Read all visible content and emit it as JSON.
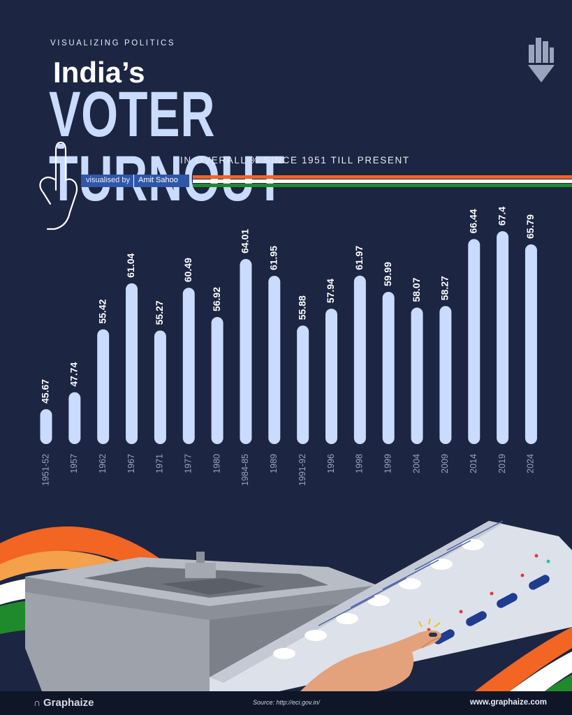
{
  "header": {
    "kicker": "VISUALIZING POLITICS",
    "title_line1": "India’s",
    "title_line2": "VOTER TURNOUT",
    "subtitle": "IN OVERALL % SINCE 1951 TILL PRESENT",
    "byline_label": "visualised by",
    "byline_name": "Amit Sahoo",
    "logo_icon": "graphaize-pencil-icon",
    "finger_icon": "voting-finger-icon"
  },
  "colors": {
    "background": "#1c2541",
    "bar": "#c9dbff",
    "saffron": "#f26522",
    "white": "#ffffff",
    "green": "#1f8a2c",
    "footer": "#0f1627"
  },
  "chart_data": {
    "type": "bar",
    "title": "India’s VOTER TURNOUT",
    "subtitle": "IN OVERALL % SINCE 1951 TILL PRESENT",
    "xlabel": "",
    "ylabel": "",
    "categories": [
      "1951-52",
      "1957",
      "1962",
      "1967",
      "1971",
      "1977",
      "1980",
      "1984-85",
      "1989",
      "1991-92",
      "1996",
      "1998",
      "1999",
      "2004",
      "2009",
      "2014",
      "2019",
      "2024"
    ],
    "values": [
      45.67,
      47.74,
      55.42,
      61.04,
      55.27,
      60.49,
      56.92,
      64.01,
      61.95,
      55.88,
      57.94,
      61.97,
      59.99,
      58.07,
      58.27,
      66.44,
      67.4,
      65.79
    ],
    "value_labels": [
      "45.67",
      "47.74",
      "55.42",
      "61.04",
      "55.27",
      "60.49",
      "56.92",
      "64.01",
      "61.95",
      "55.88",
      "57.94",
      "61.97",
      "59.99",
      "58.07",
      "58.27",
      "66.44",
      "67.4",
      "65.79"
    ],
    "grid": false,
    "legend": "none"
  },
  "footer": {
    "brand": "Graphaize",
    "source": "Source: http://eci.gov.in/",
    "website": "www.graphaize.com"
  },
  "illustrations": {
    "parliament": "parliament-building-illustration",
    "evm": "evm-voting-machine-illustration",
    "hand": "voting-hand-illustration"
  }
}
